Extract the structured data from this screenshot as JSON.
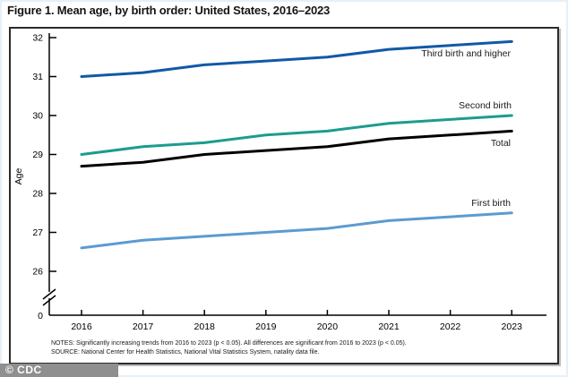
{
  "title": "Figure 1. Mean age, by birth order: United States, 2016–2023",
  "chart_data": {
    "type": "line",
    "x": [
      2016,
      2017,
      2018,
      2019,
      2020,
      2021,
      2022,
      2023
    ],
    "xlabel": "",
    "ylabel": "Age",
    "yticks": [
      32,
      31,
      30,
      29,
      28,
      27,
      26
    ],
    "y_origin_label": "0",
    "y_axis_break": true,
    "ylim_displayed": [
      26,
      32
    ],
    "grid": false,
    "legend_position": "end-of-line-labels",
    "series": [
      {
        "name": "Third birth and higher",
        "color": "#1159a6",
        "values": [
          31.0,
          31.1,
          31.3,
          31.4,
          31.5,
          31.7,
          31.8,
          31.9
        ]
      },
      {
        "name": "Second birth",
        "color": "#1c9c8e",
        "values": [
          29.0,
          29.2,
          29.3,
          29.5,
          29.6,
          29.8,
          29.9,
          30.0
        ]
      },
      {
        "name": "Total",
        "color": "#000000",
        "values": [
          28.7,
          28.8,
          29.0,
          29.1,
          29.2,
          29.4,
          29.5,
          29.6
        ]
      },
      {
        "name": "First birth",
        "color": "#5b9bd1",
        "values": [
          26.6,
          26.8,
          26.9,
          27.0,
          27.1,
          27.3,
          27.4,
          27.5
        ]
      }
    ]
  },
  "notes": "NOTES: Significantly increasing trends from 2016 to 2023 (p < 0.05). All differences are significant from 2016 to 2023 (p < 0.05).",
  "source": "SOURCE: National Center for Health Statistics, National Vital Statistics System, natality data file.",
  "watermark": "© CDC"
}
